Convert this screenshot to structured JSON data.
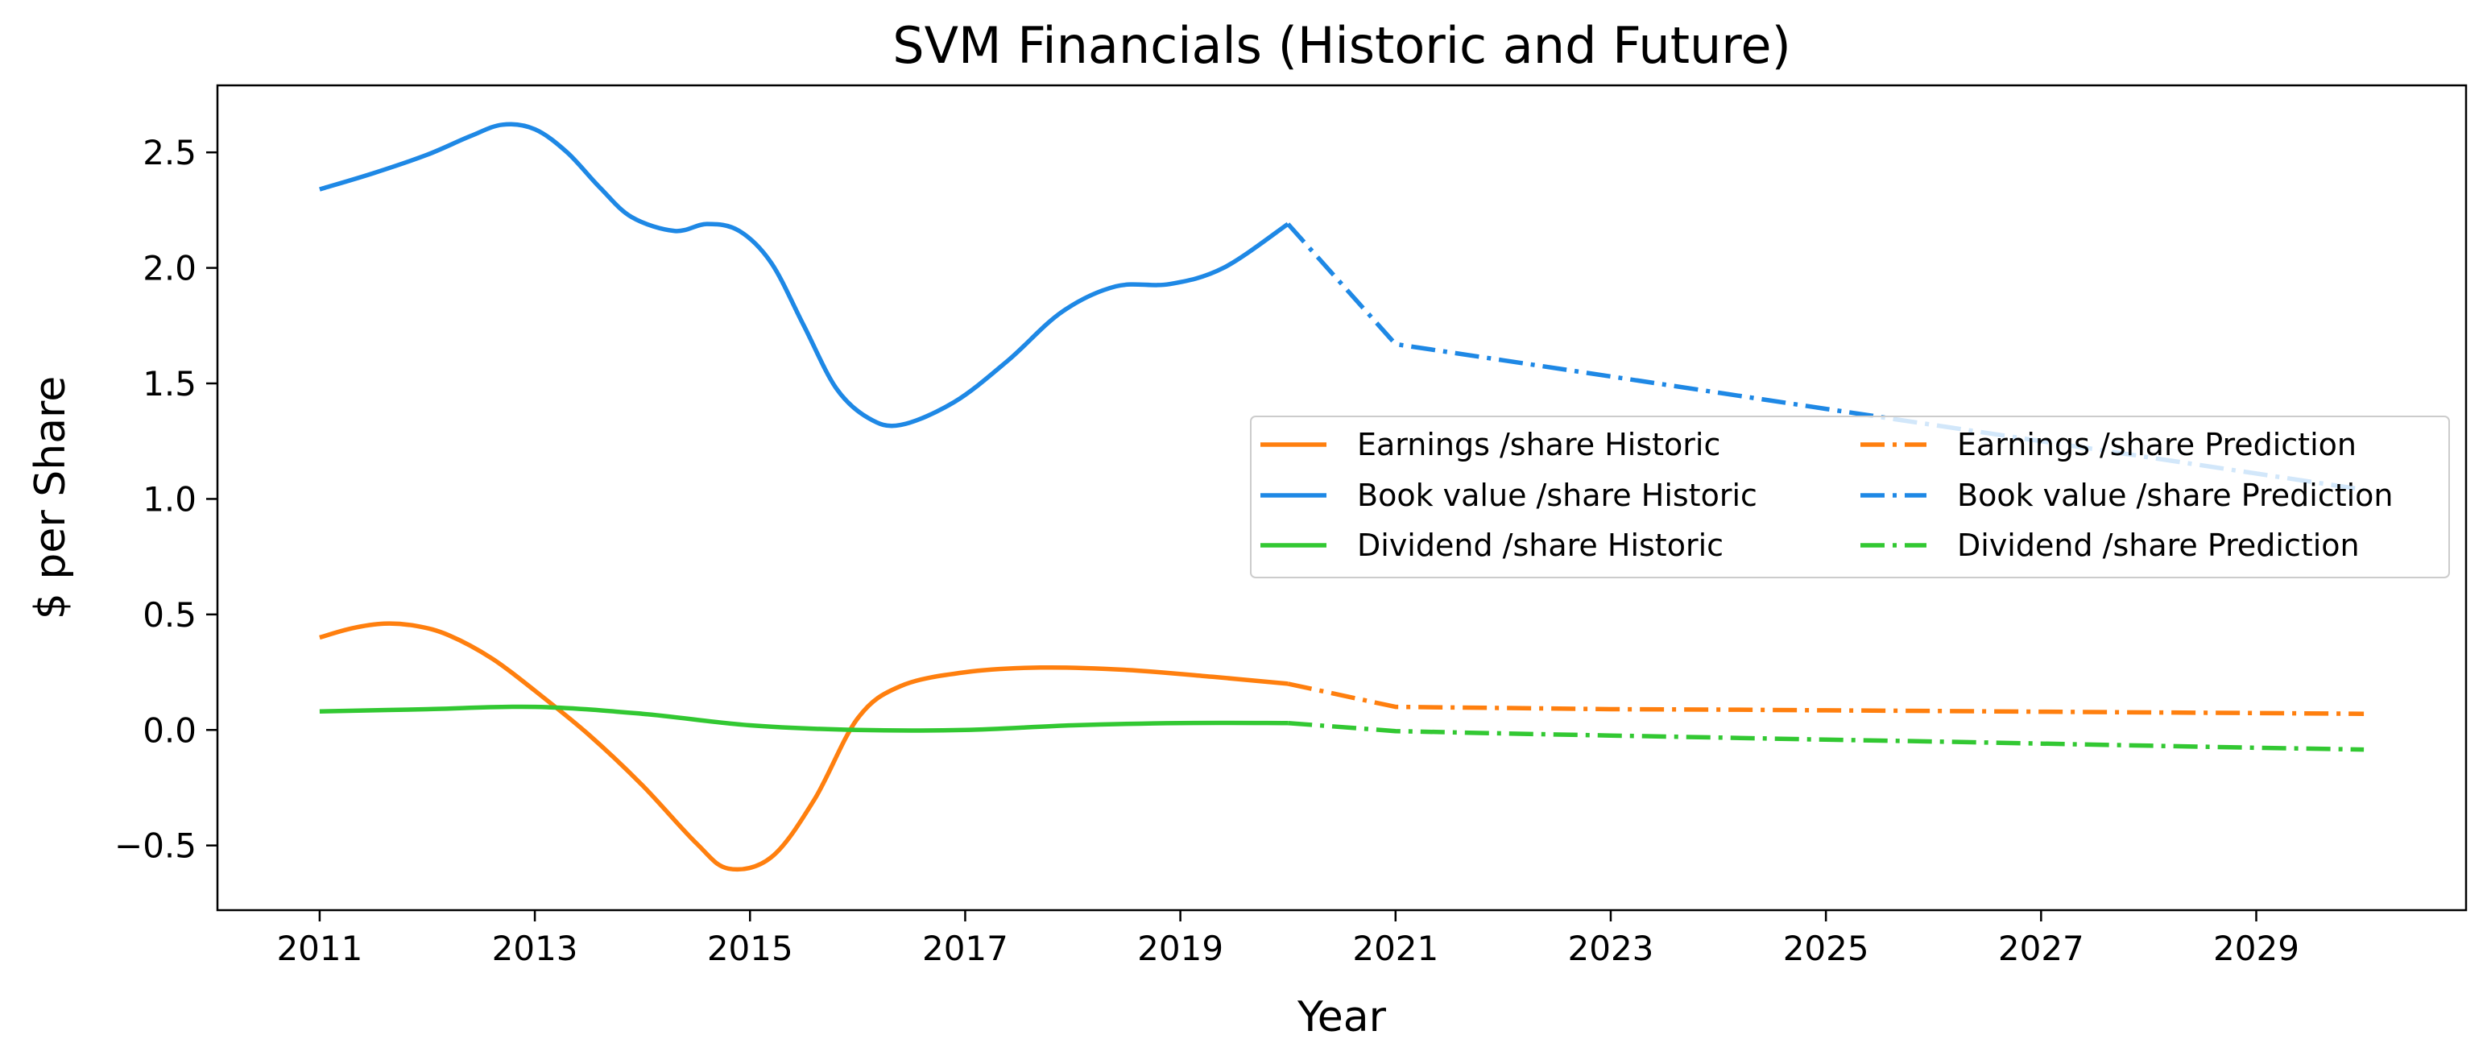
{
  "chart_data": {
    "type": "line",
    "title": "SVM Financials (Historic and Future)",
    "xlabel": "Year",
    "ylabel": "$ per Share",
    "xlim": [
      2010.05,
      2030.95
    ],
    "ylim": [
      -0.78,
      2.79
    ],
    "x_ticks": [
      2011,
      2013,
      2015,
      2017,
      2019,
      2021,
      2023,
      2025,
      2027,
      2029
    ],
    "x_tick_labels": [
      "2011",
      "2013",
      "2015",
      "2017",
      "2019",
      "2021",
      "2023",
      "2025",
      "2027",
      "2029"
    ],
    "y_ticks": [
      -0.5,
      0.0,
      0.5,
      1.0,
      1.5,
      2.0,
      2.5
    ],
    "y_tick_labels": [
      "−0.5",
      "0.0",
      "0.5",
      "1.0",
      "1.5",
      "2.0",
      "2.5"
    ],
    "grid": false,
    "legend_position": "center-right",
    "legend_columns": 2,
    "series": [
      {
        "name": "Earnings /share Historic",
        "color": "#ff7f0e",
        "line_style": "solid",
        "x": [
          2011,
          2011.3,
          2011.6,
          2011.9,
          2012.2,
          2012.6,
          2013,
          2013.5,
          2014,
          2014.5,
          2014.8,
          2015.2,
          2015.6,
          2016,
          2016.4,
          2017,
          2017.7,
          2018.5,
          2019.3,
          2020
        ],
        "y": [
          0.4,
          0.44,
          0.46,
          0.45,
          0.41,
          0.31,
          0.17,
          -0.02,
          -0.24,
          -0.49,
          -0.6,
          -0.55,
          -0.3,
          0.05,
          0.19,
          0.25,
          0.27,
          0.26,
          0.23,
          0.2
        ]
      },
      {
        "name": "Book value /share Historic",
        "color": "#1e88e5",
        "line_style": "solid",
        "x": [
          2011,
          2011.5,
          2012,
          2012.4,
          2012.7,
          2013,
          2013.3,
          2013.6,
          2013.9,
          2014.3,
          2014.6,
          2014.9,
          2015.2,
          2015.5,
          2015.8,
          2016.1,
          2016.4,
          2016.9,
          2017.4,
          2017.9,
          2018.4,
          2018.9,
          2019.4,
          2020
        ],
        "y": [
          2.34,
          2.41,
          2.49,
          2.57,
          2.62,
          2.6,
          2.5,
          2.35,
          2.22,
          2.16,
          2.19,
          2.16,
          2.02,
          1.75,
          1.48,
          1.35,
          1.32,
          1.42,
          1.6,
          1.81,
          1.92,
          1.93,
          2.0,
          2.19
        ]
      },
      {
        "name": "Dividend /share Historic",
        "color": "#32c832",
        "line_style": "solid",
        "x": [
          2011,
          2012,
          2013,
          2014,
          2015,
          2016,
          2017,
          2018,
          2019,
          2020
        ],
        "y": [
          0.08,
          0.09,
          0.1,
          0.07,
          0.02,
          0.0,
          0.0,
          0.02,
          0.03,
          0.03
        ]
      },
      {
        "name": "Earnings /share Prediction",
        "color": "#ff7f0e",
        "line_style": "dashdot",
        "x": [
          2020,
          2021,
          2022,
          2023,
          2024,
          2025,
          2026,
          2027,
          2028,
          2029,
          2030
        ],
        "y": [
          0.2,
          0.1,
          0.095,
          0.09,
          0.088,
          0.085,
          0.082,
          0.079,
          0.076,
          0.073,
          0.07
        ]
      },
      {
        "name": "Book value /share Prediction",
        "color": "#1e88e5",
        "line_style": "dashdot",
        "x": [
          2020,
          2021,
          2022,
          2023,
          2024,
          2025,
          2026,
          2027,
          2028,
          2029,
          2030
        ],
        "y": [
          2.19,
          1.67,
          1.6,
          1.53,
          1.46,
          1.39,
          1.32,
          1.25,
          1.18,
          1.11,
          1.04
        ]
      },
      {
        "name": "Dividend /share Prediction",
        "color": "#32c832",
        "line_style": "dashdot",
        "x": [
          2020,
          2021,
          2022,
          2023,
          2024,
          2025,
          2026,
          2027,
          2028,
          2029,
          2030
        ],
        "y": [
          0.03,
          -0.005,
          -0.015,
          -0.024,
          -0.033,
          -0.042,
          -0.05,
          -0.059,
          -0.068,
          -0.077,
          -0.085
        ]
      }
    ]
  }
}
